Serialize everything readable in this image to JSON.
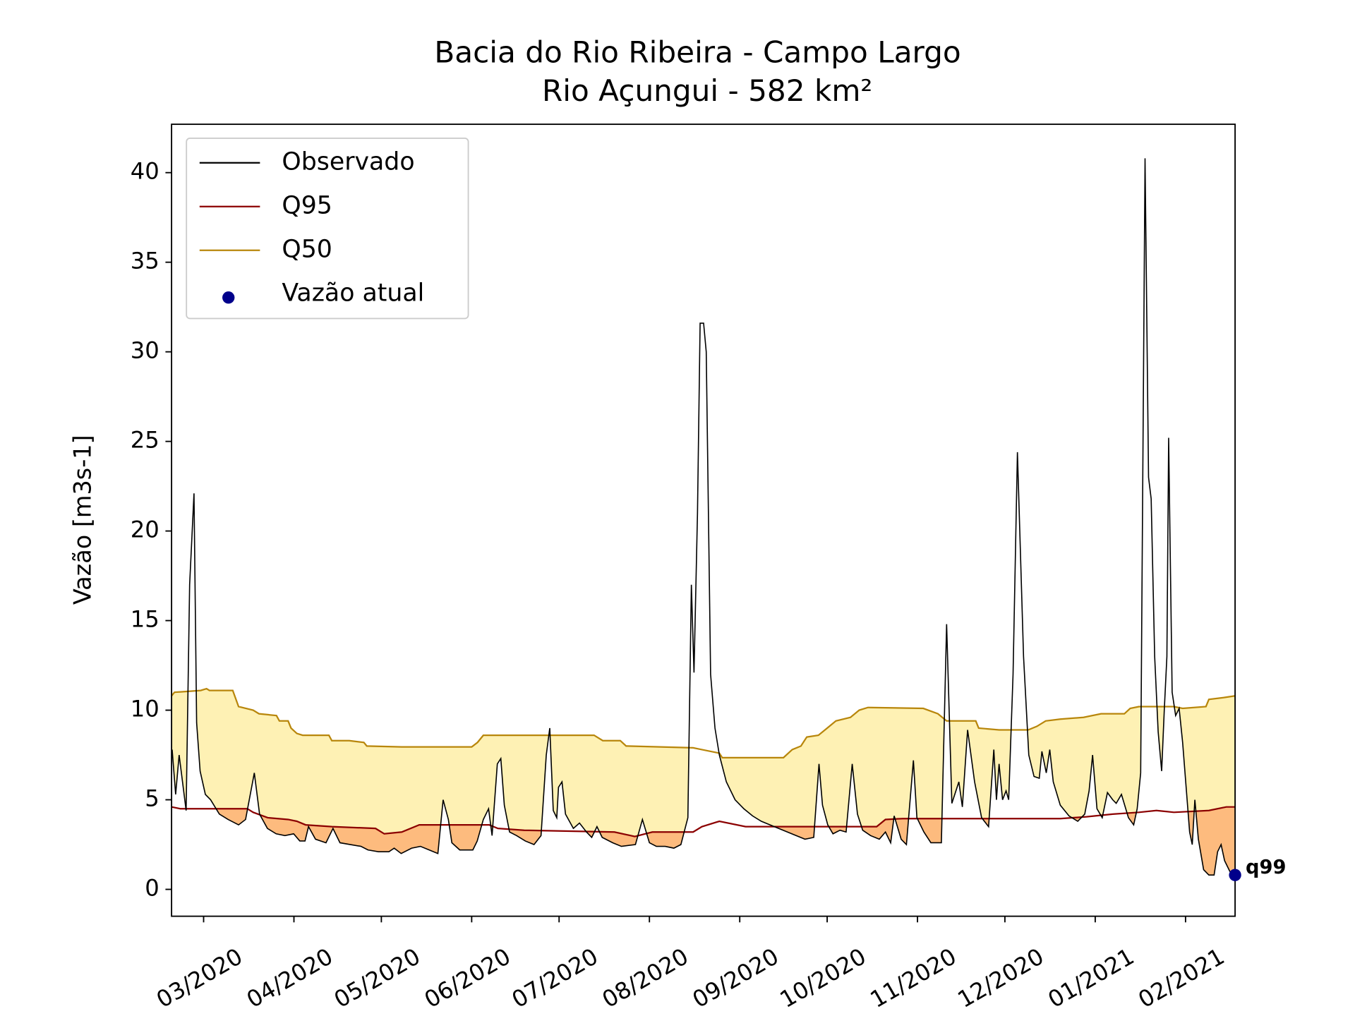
{
  "chart_data": {
    "type": "line",
    "title": "Bacia do Rio Ribeira - Campo Largo",
    "subtitle": "Rio Açungui - 582 km²",
    "y_label": "Vazão [m3s-1]",
    "xlim": [
      49,
      414
    ],
    "ylim": [
      -1.5,
      42.7
    ],
    "xticks": [
      {
        "value": 60,
        "label": "03/2020"
      },
      {
        "value": 91,
        "label": "04/2020"
      },
      {
        "value": 121,
        "label": "05/2020"
      },
      {
        "value": 152,
        "label": "06/2020"
      },
      {
        "value": 182,
        "label": "07/2020"
      },
      {
        "value": 213,
        "label": "08/2020"
      },
      {
        "value": 244,
        "label": "09/2020"
      },
      {
        "value": 274,
        "label": "10/2020"
      },
      {
        "value": 305,
        "label": "11/2020"
      },
      {
        "value": 335,
        "label": "12/2020"
      },
      {
        "value": 366,
        "label": "01/2021"
      },
      {
        "value": 397,
        "label": "02/2021"
      }
    ],
    "yticks": [
      0,
      5,
      10,
      15,
      20,
      25,
      30,
      35,
      40
    ],
    "legend": "upper left",
    "fills": [
      {
        "series": [
          0,
          2
        ],
        "color": "#fef1b4"
      },
      {
        "series": [
          0,
          1
        ],
        "color": "#fdbb7e"
      }
    ],
    "annotation": "q99",
    "series": [
      {
        "name": "Observado",
        "type": "line",
        "color": "#000000",
        "x": [
          49.2,
          50.4,
          51.6,
          54.0,
          55.2,
          56.7,
          57.6,
          58.8,
          60.6,
          62.4,
          65.4,
          68.4,
          72.0,
          74.4,
          77.4,
          79.2,
          81.9,
          84.9,
          87.9,
          90.9,
          93.0,
          94.8,
          96.0,
          98.4,
          102.0,
          104.4,
          106.8,
          110.4,
          114.0,
          116.4,
          120.0,
          123.6,
          125.4,
          127.8,
          131.4,
          134.4,
          137.4,
          140.4,
          142.2,
          144.0,
          145.2,
          147.9,
          152.4,
          153.9,
          156.0,
          157.8,
          159.0,
          160.8,
          162.0,
          163.2,
          165.0,
          167.4,
          170.4,
          173.4,
          175.8,
          177.6,
          178.8,
          180.0,
          181.2,
          181.8,
          183.0,
          184.2,
          186.9,
          189.0,
          191.4,
          193.2,
          195.0,
          196.8,
          200.4,
          203.4,
          208.2,
          210.6,
          213.0,
          215.4,
          218.4,
          221.4,
          223.8,
          226.2,
          227.4,
          228.3,
          229.5,
          230.4,
          231.6,
          232.5,
          234.0,
          235.5,
          237.0,
          239.4,
          242.4,
          245.4,
          248.4,
          251.4,
          254.4,
          258.9,
          263.4,
          266.4,
          269.4,
          271.2,
          272.4,
          274.2,
          276.0,
          278.4,
          280.5,
          282.6,
          284.4,
          286.2,
          288.9,
          291.9,
          294.0,
          295.8,
          297.0,
          299.4,
          301.2,
          303.6,
          304.8,
          307.2,
          309.6,
          313.2,
          315.0,
          316.8,
          319.2,
          320.4,
          322.2,
          324.6,
          327.0,
          329.4,
          331.2,
          332.1,
          333.0,
          334.2,
          335.4,
          336.3,
          337.8,
          339.3,
          341.4,
          343.2,
          345.0,
          346.8,
          347.7,
          349.2,
          350.4,
          351.6,
          354.0,
          357.0,
          360.0,
          362.4,
          363.9,
          365.1,
          366.6,
          368.4,
          370.2,
          372.0,
          373.2,
          375.0,
          377.4,
          379.2,
          380.4,
          381.6,
          383.1,
          384.3,
          385.2,
          386.4,
          387.6,
          388.8,
          389.7,
          390.6,
          391.2,
          392.4,
          393.6,
          394.8,
          396.0,
          397.2,
          398.4,
          399.3,
          400.2,
          401.4,
          403.2,
          405.0,
          406.8,
          408.0,
          409.2,
          410.4,
          412.2,
          414.0
        ],
        "values": [
          7.8,
          5.3,
          7.5,
          4.4,
          17.0,
          22.1,
          9.3,
          6.6,
          5.3,
          5.0,
          4.2,
          3.9,
          3.6,
          3.9,
          6.5,
          4.2,
          3.4,
          3.1,
          3.0,
          3.1,
          2.7,
          2.7,
          3.5,
          2.8,
          2.6,
          3.4,
          2.6,
          2.5,
          2.4,
          2.2,
          2.1,
          2.1,
          2.3,
          2.0,
          2.3,
          2.4,
          2.2,
          2.0,
          5.0,
          3.9,
          2.6,
          2.2,
          2.2,
          2.7,
          3.9,
          4.5,
          3.0,
          7.0,
          7.3,
          4.7,
          3.2,
          3.0,
          2.7,
          2.5,
          3.0,
          7.5,
          9.0,
          4.4,
          4.0,
          5.7,
          6.0,
          4.2,
          3.4,
          3.7,
          3.2,
          2.9,
          3.5,
          2.9,
          2.6,
          2.4,
          2.5,
          3.9,
          2.6,
          2.4,
          2.4,
          2.3,
          2.5,
          4.0,
          17.0,
          12.1,
          21.0,
          31.6,
          31.6,
          30.0,
          12.0,
          9.0,
          7.5,
          6.0,
          5.0,
          4.5,
          4.1,
          3.8,
          3.6,
          3.3,
          3.0,
          2.8,
          2.9,
          7.0,
          4.7,
          3.6,
          3.1,
          3.3,
          3.2,
          7.0,
          4.2,
          3.3,
          3.0,
          2.8,
          3.2,
          2.6,
          4.1,
          2.8,
          2.5,
          7.2,
          4.0,
          3.2,
          2.6,
          2.6,
          14.8,
          4.8,
          6.0,
          4.6,
          8.9,
          6.0,
          4.0,
          3.5,
          7.8,
          5.0,
          7.0,
          5.0,
          5.5,
          5.0,
          12.0,
          24.4,
          13.0,
          7.5,
          6.3,
          6.2,
          7.7,
          6.5,
          7.8,
          6.0,
          4.7,
          4.1,
          3.8,
          4.2,
          5.5,
          7.5,
          4.5,
          4.0,
          5.4,
          5.0,
          4.8,
          5.3,
          4.0,
          3.6,
          4.5,
          6.5,
          40.8,
          23.0,
          21.8,
          13.0,
          8.8,
          6.6,
          10.0,
          13.0,
          25.2,
          11.0,
          9.7,
          10.1,
          8.2,
          5.7,
          3.2,
          2.5,
          5.0,
          2.8,
          1.1,
          0.8,
          0.8,
          2.1,
          2.5,
          1.6,
          1.0,
          0.8
        ]
      },
      {
        "name": "Q95",
        "type": "line",
        "color": "#8b0000",
        "x": [
          49,
          52,
          75,
          77,
          82,
          89,
          92,
          95,
          104,
          119,
          122,
          128,
          134,
          158,
          161,
          170,
          201,
          208,
          214,
          228,
          231,
          237,
          246,
          291,
          294,
          300,
          354,
          363,
          372,
          381,
          387,
          393,
          405,
          411,
          414
        ],
        "values": [
          4.6,
          4.5,
          4.5,
          4.3,
          4.0,
          3.9,
          3.8,
          3.6,
          3.5,
          3.4,
          3.1,
          3.2,
          3.6,
          3.6,
          3.4,
          3.3,
          3.2,
          2.95,
          3.2,
          3.2,
          3.5,
          3.8,
          3.5,
          3.5,
          3.9,
          3.95,
          3.95,
          4.05,
          4.2,
          4.3,
          4.4,
          4.3,
          4.4,
          4.6,
          4.6
        ]
      },
      {
        "name": "Q50",
        "type": "line",
        "color": "#b8860b",
        "x": [
          49,
          50,
          59,
          61,
          62,
          70,
          72,
          77,
          79,
          85,
          86,
          89,
          90,
          92,
          94,
          103,
          104,
          110,
          115,
          116,
          128,
          152,
          154,
          156,
          194,
          197,
          203,
          205,
          228,
          231,
          237,
          238,
          259,
          262,
          265,
          267,
          271,
          274,
          277,
          282,
          285,
          288,
          307,
          312,
          315,
          325,
          326,
          333,
          343,
          346,
          349,
          354,
          362,
          368,
          376,
          378,
          381,
          393,
          396,
          404,
          405,
          410,
          414
        ],
        "values": [
          10.8,
          11.0,
          11.1,
          11.2,
          11.1,
          11.1,
          10.2,
          10.0,
          9.8,
          9.7,
          9.4,
          9.4,
          9.0,
          8.7,
          8.6,
          8.6,
          8.3,
          8.3,
          8.2,
          8.0,
          7.95,
          7.95,
          8.2,
          8.6,
          8.6,
          8.3,
          8.3,
          8.0,
          7.9,
          7.8,
          7.6,
          7.35,
          7.35,
          7.8,
          8.0,
          8.5,
          8.6,
          9.0,
          9.4,
          9.6,
          10.0,
          10.15,
          10.1,
          9.8,
          9.4,
          9.4,
          9.0,
          8.9,
          8.9,
          9.1,
          9.4,
          9.5,
          9.6,
          9.8,
          9.8,
          10.1,
          10.2,
          10.2,
          10.1,
          10.2,
          10.6,
          10.7,
          10.8
        ]
      },
      {
        "name": "Vazão atual",
        "type": "scatter",
        "color": "#00008b",
        "x": [
          414
        ],
        "values": [
          0.8
        ]
      }
    ]
  }
}
